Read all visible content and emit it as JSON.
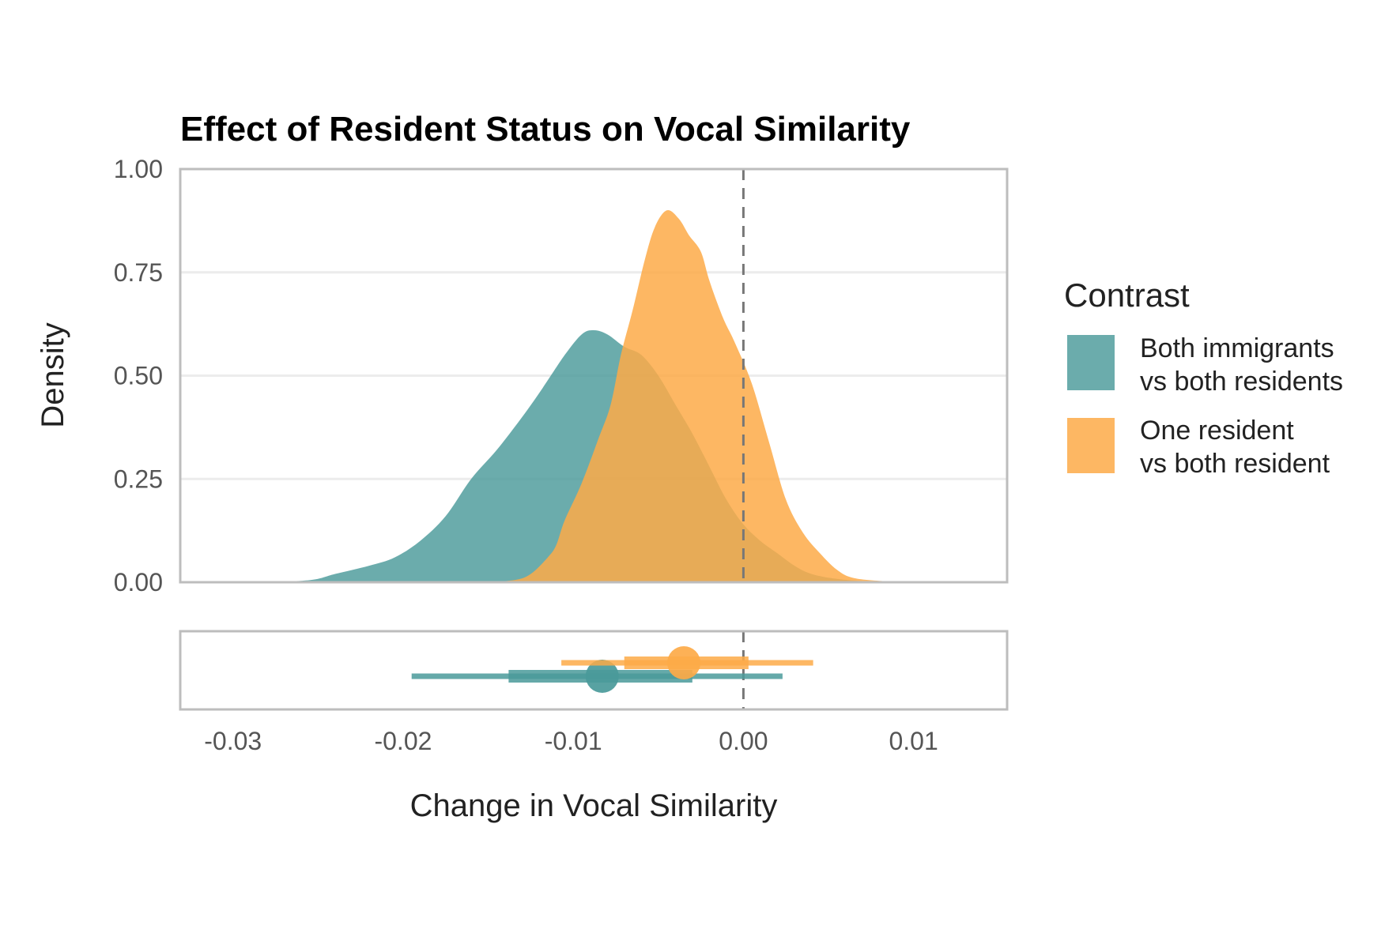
{
  "chart_data": {
    "type": "area",
    "title": "Effect of Resident Status on Vocal Similarity",
    "xlabel": "Change in Vocal Similarity",
    "ylabel": "Density",
    "xlim": [
      -0.0331,
      0.0155
    ],
    "ylim": [
      0,
      1
    ],
    "x_ticks": [
      -0.03,
      -0.02,
      -0.01,
      0.0,
      0.01
    ],
    "x_tick_labels": [
      "-0.03",
      "-0.02",
      "-0.01",
      "0.00",
      "0.01"
    ],
    "y_ticks": [
      0,
      0.25,
      0.5,
      0.75,
      1
    ],
    "y_tick_labels": [
      "0.00",
      "0.25",
      "0.50",
      "0.75",
      "1.00"
    ],
    "grid": true,
    "reference_line_x": 0,
    "legend": {
      "title": "Contrast",
      "placement": "right",
      "entries": [
        {
          "line1": "Both immigrants",
          "line2": "vs both residents",
          "color": "#4a9a9a"
        },
        {
          "line1": "One resident",
          "line2": "vs both resident",
          "color": "#fdaa48"
        }
      ]
    },
    "series": [
      {
        "color": "#4a9a9a",
        "density": [
          [
            -0.0285,
            0.0
          ],
          [
            -0.0255,
            0.005
          ],
          [
            -0.024,
            0.02
          ],
          [
            -0.022,
            0.04
          ],
          [
            -0.0205,
            0.06
          ],
          [
            -0.019,
            0.1
          ],
          [
            -0.0175,
            0.16
          ],
          [
            -0.016,
            0.25
          ],
          [
            -0.0145,
            0.32
          ],
          [
            -0.013,
            0.4
          ],
          [
            -0.0118,
            0.47
          ],
          [
            -0.0105,
            0.55
          ],
          [
            -0.0095,
            0.6
          ],
          [
            -0.0088,
            0.61
          ],
          [
            -0.008,
            0.6
          ],
          [
            -0.007,
            0.57
          ],
          [
            -0.006,
            0.55
          ],
          [
            -0.005,
            0.5
          ],
          [
            -0.004,
            0.43
          ],
          [
            -0.003,
            0.36
          ],
          [
            -0.002,
            0.28
          ],
          [
            -0.001,
            0.2
          ],
          [
            0.0,
            0.14
          ],
          [
            0.001,
            0.1
          ],
          [
            0.002,
            0.07
          ],
          [
            0.003,
            0.04
          ],
          [
            0.004,
            0.02
          ],
          [
            0.0055,
            0.008
          ],
          [
            0.0075,
            0.002
          ],
          [
            0.011,
            0.0
          ]
        ],
        "interval": {
          "point": -0.0083,
          "inner": [
            -0.0138,
            -0.003
          ],
          "outer": [
            -0.0195,
            0.0023
          ]
        }
      },
      {
        "color": "#fdaa48",
        "density": [
          [
            -0.0155,
            0.0
          ],
          [
            -0.0135,
            0.005
          ],
          [
            -0.0125,
            0.02
          ],
          [
            -0.0115,
            0.06
          ],
          [
            -0.011,
            0.09
          ],
          [
            -0.0105,
            0.15
          ],
          [
            -0.0095,
            0.24
          ],
          [
            -0.0085,
            0.35
          ],
          [
            -0.0078,
            0.43
          ],
          [
            -0.0072,
            0.55
          ],
          [
            -0.0065,
            0.66
          ],
          [
            -0.0058,
            0.78
          ],
          [
            -0.0052,
            0.86
          ],
          [
            -0.0045,
            0.9
          ],
          [
            -0.0038,
            0.88
          ],
          [
            -0.0032,
            0.84
          ],
          [
            -0.0025,
            0.8
          ],
          [
            -0.002,
            0.73
          ],
          [
            -0.0012,
            0.64
          ],
          [
            -0.0005,
            0.58
          ],
          [
            0.0005,
            0.48
          ],
          [
            0.0015,
            0.34
          ],
          [
            0.0025,
            0.2
          ],
          [
            0.0035,
            0.12
          ],
          [
            0.0045,
            0.07
          ],
          [
            0.0055,
            0.03
          ],
          [
            0.0065,
            0.01
          ],
          [
            0.0085,
            0.002
          ],
          [
            0.0105,
            0.0
          ]
        ],
        "interval": {
          "point": -0.0035,
          "inner": [
            -0.007,
            0.0003
          ],
          "outer": [
            -0.0107,
            0.0041
          ]
        }
      }
    ]
  }
}
